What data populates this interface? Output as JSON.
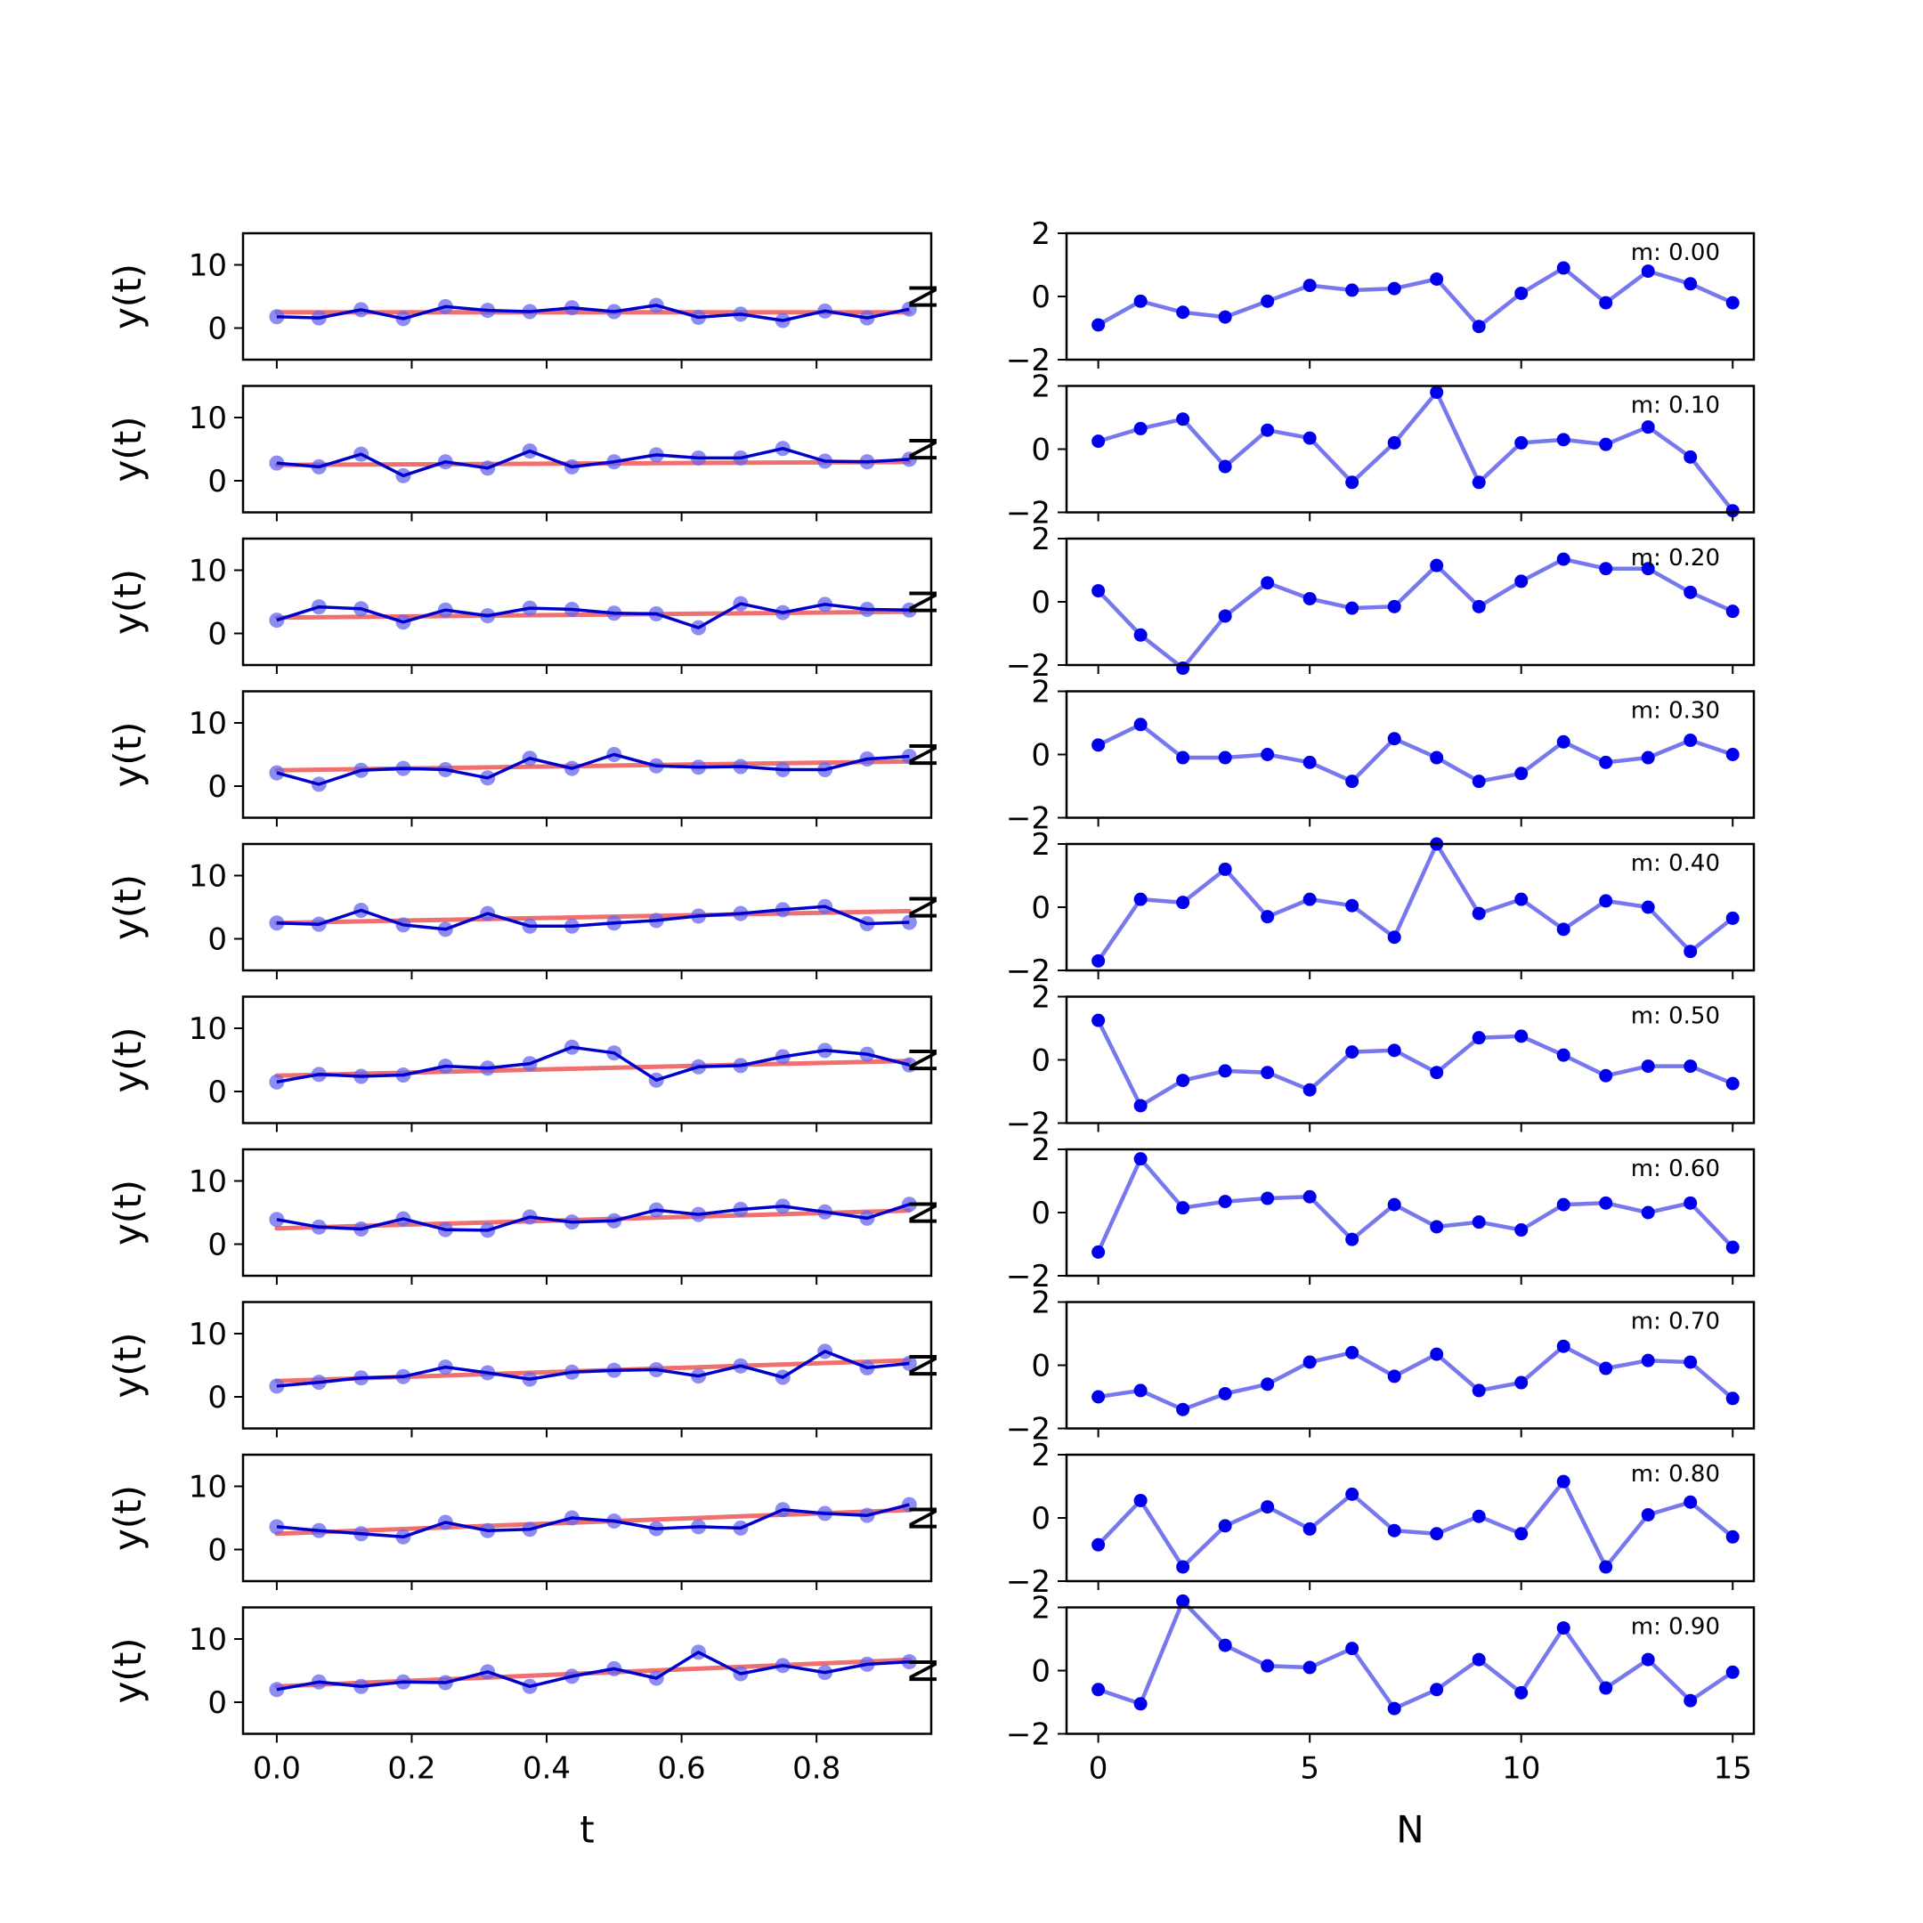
{
  "chart_data": [
    {
      "type": "line",
      "grid": false,
      "xlabel": "t",
      "ylabel": "y(t)",
      "xlim": [
        -0.05,
        0.97
      ],
      "ylim": [
        -5,
        15
      ],
      "xticks": [
        "0.0",
        "0.2",
        "0.4",
        "0.6",
        "0.8"
      ],
      "xtick_values": [
        0.0,
        0.2,
        0.4,
        0.6,
        0.8
      ],
      "yticks": [
        "0",
        "10"
      ],
      "ytick_values": [
        0,
        10
      ],
      "x": [
        0.0,
        0.0625,
        0.125,
        0.1875,
        0.25,
        0.3125,
        0.375,
        0.4375,
        0.5,
        0.5625,
        0.625,
        0.6875,
        0.75,
        0.8125,
        0.875,
        0.9375
      ],
      "colors": {
        "observed": "#0000cc",
        "markers": "#6666ee",
        "trend": "#f07070"
      },
      "panels": [
        {
          "slope": 0.0,
          "y": [
            1.8,
            1.6,
            2.9,
            1.5,
            3.4,
            2.8,
            2.6,
            3.2,
            2.6,
            3.6,
            1.7,
            2.2,
            1.2,
            2.7,
            1.6,
            3.0
          ]
        },
        {
          "slope": 0.1,
          "y": [
            2.8,
            2.2,
            4.2,
            0.8,
            3.0,
            2.0,
            4.7,
            2.2,
            3.0,
            4.1,
            3.6,
            3.6,
            5.1,
            3.1,
            3.0,
            3.4
          ]
        },
        {
          "slope": 0.2,
          "y": [
            2.1,
            4.2,
            3.9,
            1.8,
            3.7,
            2.8,
            4.0,
            3.8,
            3.2,
            3.1,
            0.9,
            4.7,
            3.3,
            4.6,
            3.8,
            3.7
          ]
        },
        {
          "slope": 0.3,
          "y": [
            2.1,
            0.3,
            2.5,
            2.8,
            2.6,
            1.3,
            4.4,
            2.8,
            5.0,
            3.2,
            3.0,
            3.1,
            2.6,
            2.6,
            4.3,
            4.7
          ]
        },
        {
          "slope": 0.4,
          "y": [
            2.5,
            2.3,
            4.5,
            2.2,
            1.5,
            4.0,
            2.0,
            2.0,
            2.5,
            2.9,
            3.6,
            4.0,
            4.6,
            5.1,
            2.4,
            2.6
          ]
        },
        {
          "slope": 0.5,
          "y": [
            1.5,
            2.7,
            2.4,
            2.6,
            4.0,
            3.7,
            4.4,
            7.0,
            6.1,
            1.8,
            3.9,
            4.1,
            5.5,
            6.5,
            5.9,
            4.2
          ]
        },
        {
          "slope": 0.6,
          "y": [
            3.9,
            2.7,
            2.4,
            4.0,
            2.3,
            2.2,
            4.3,
            3.5,
            3.7,
            5.4,
            4.7,
            5.5,
            6.0,
            5.1,
            4.1,
            6.3
          ]
        },
        {
          "slope": 0.7,
          "y": [
            1.7,
            2.3,
            3.0,
            3.2,
            4.7,
            3.8,
            2.8,
            3.9,
            4.2,
            4.3,
            3.3,
            4.9,
            3.1,
            7.2,
            4.6,
            5.3
          ]
        },
        {
          "slope": 0.8,
          "y": [
            3.6,
            3.0,
            2.5,
            2.0,
            4.3,
            3.0,
            3.2,
            5.0,
            4.5,
            3.3,
            3.6,
            3.4,
            6.3,
            5.7,
            5.4,
            7.1
          ]
        },
        {
          "slope": 0.9,
          "y": [
            2.0,
            3.2,
            2.5,
            3.2,
            3.1,
            4.8,
            2.5,
            4.1,
            5.3,
            3.8,
            7.9,
            4.5,
            5.8,
            4.7,
            6.0,
            6.4
          ]
        }
      ]
    },
    {
      "type": "line",
      "grid": false,
      "xlabel": "N",
      "ylabel": "N",
      "xlim": [
        -0.75,
        15.5
      ],
      "ylim": [
        -2,
        2
      ],
      "xticks": [
        "0",
        "5",
        "10",
        "15"
      ],
      "xtick_values": [
        0,
        5,
        10,
        15
      ],
      "yticks": [
        "−2",
        "0",
        "2"
      ],
      "ytick_values": [
        -2,
        0,
        2
      ],
      "x": [
        0,
        1,
        2,
        3,
        4,
        5,
        6,
        7,
        8,
        9,
        10,
        11,
        12,
        13,
        14,
        15
      ],
      "colors": {
        "line": "#7777ee",
        "markers": "#0000ee"
      },
      "panels": [
        {
          "label": "m: 0.00",
          "y": [
            -0.9,
            -0.15,
            -0.5,
            -0.65,
            -0.15,
            0.35,
            0.2,
            0.25,
            0.55,
            -0.95,
            0.1,
            0.9,
            -0.2,
            0.8,
            0.4,
            -0.2
          ]
        },
        {
          "label": "m: 0.10",
          "y": [
            0.25,
            0.65,
            0.95,
            -0.55,
            0.6,
            0.35,
            -1.05,
            0.2,
            1.8,
            -1.05,
            0.2,
            0.3,
            0.15,
            0.7,
            -0.25,
            -1.95
          ]
        },
        {
          "label": "m: 0.20",
          "y": [
            0.35,
            -1.05,
            -2.1,
            -0.45,
            0.6,
            0.1,
            -0.2,
            -0.15,
            1.15,
            -0.15,
            0.65,
            1.35,
            1.05,
            1.05,
            0.3,
            -0.3
          ]
        },
        {
          "label": "m: 0.30",
          "y": [
            0.3,
            0.95,
            -0.1,
            -0.1,
            0.0,
            -0.25,
            -0.85,
            0.5,
            -0.1,
            -0.85,
            -0.6,
            0.4,
            -0.25,
            -0.1,
            0.45,
            0.0
          ]
        },
        {
          "label": "m: 0.40",
          "y": [
            -1.7,
            0.25,
            0.15,
            1.2,
            -0.3,
            0.25,
            0.05,
            -0.95,
            2.0,
            -0.2,
            0.25,
            -0.7,
            0.2,
            0.0,
            -1.4,
            -0.35
          ]
        },
        {
          "label": "m: 0.50",
          "y": [
            1.25,
            -1.45,
            -0.65,
            -0.35,
            -0.4,
            -0.95,
            0.25,
            0.3,
            -0.4,
            0.7,
            0.75,
            0.15,
            -0.5,
            -0.2,
            -0.2,
            -0.75
          ]
        },
        {
          "label": "m: 0.60",
          "y": [
            -1.25,
            1.7,
            0.15,
            0.35,
            0.45,
            0.5,
            -0.85,
            0.25,
            -0.45,
            -0.3,
            -0.55,
            0.25,
            0.3,
            0.0,
            0.3,
            -1.1
          ]
        },
        {
          "label": "m: 0.70",
          "y": [
            -1.0,
            -0.8,
            -1.4,
            -0.9,
            -0.6,
            0.1,
            0.4,
            -0.35,
            0.35,
            -0.8,
            -0.55,
            0.6,
            -0.1,
            0.15,
            0.1,
            -1.05
          ]
        },
        {
          "label": "m: 0.80",
          "y": [
            -0.85,
            0.55,
            -1.55,
            -0.25,
            0.35,
            -0.35,
            0.75,
            -0.4,
            -0.5,
            0.05,
            -0.5,
            1.15,
            -1.55,
            0.1,
            0.5,
            -0.6
          ]
        },
        {
          "label": "m: 0.90",
          "y": [
            -0.6,
            -1.05,
            2.2,
            0.8,
            0.15,
            0.1,
            0.7,
            -1.2,
            -0.6,
            0.35,
            -0.7,
            1.35,
            -0.55,
            0.35,
            -0.95,
            -0.05
          ]
        }
      ]
    }
  ]
}
